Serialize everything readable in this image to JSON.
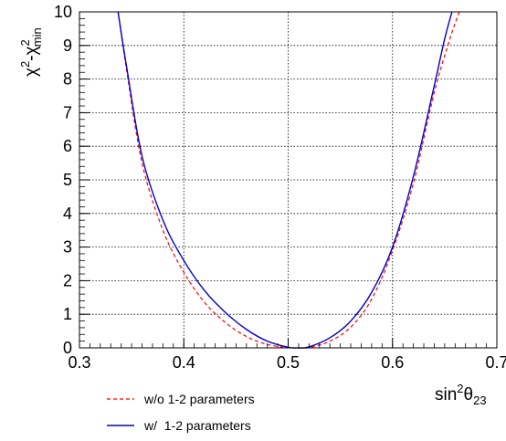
{
  "chart_data": {
    "type": "line",
    "xlabel": {
      "base": "sin",
      "sup": "2",
      "greek": "θ",
      "sub": "23"
    },
    "ylabel": {
      "chi": "χ",
      "sup1": "2",
      "dash": "-",
      "chi2": "χ",
      "sup2": "2",
      "sub": "min"
    },
    "xlim": [
      0.3,
      0.7
    ],
    "ylim": [
      0,
      10
    ],
    "x_ticks": [
      "0.3",
      "0.4",
      "0.5",
      "0.6",
      "0.7"
    ],
    "y_ticks": [
      "0",
      "1",
      "2",
      "3",
      "4",
      "5",
      "6",
      "7",
      "8",
      "9",
      "10"
    ],
    "grid": true,
    "legend_position": "bottom-left, below plot",
    "series": [
      {
        "name": "w/o 1-2 parameters",
        "color": "#ff0000",
        "style": "dashed",
        "x": [
          0.337,
          0.345,
          0.36,
          0.38,
          0.4,
          0.42,
          0.44,
          0.46,
          0.48,
          0.5,
          0.51,
          0.52,
          0.54,
          0.56,
          0.58,
          0.6,
          0.62,
          0.64,
          0.655,
          0.664
        ],
        "y": [
          10.0,
          8.3,
          5.5,
          3.5,
          2.25,
          1.35,
          0.75,
          0.34,
          0.1,
          0.01,
          0.0,
          0.01,
          0.2,
          0.62,
          1.45,
          2.9,
          4.9,
          7.6,
          9.2,
          10.0
        ]
      },
      {
        "name": "w/  1-2 parameters",
        "color": "#0000cc",
        "style": "solid",
        "x": [
          0.337,
          0.345,
          0.36,
          0.38,
          0.4,
          0.42,
          0.44,
          0.46,
          0.48,
          0.5,
          0.51,
          0.52,
          0.54,
          0.56,
          0.58,
          0.6,
          0.62,
          0.64,
          0.65,
          0.657
        ],
        "y": [
          10.0,
          8.4,
          5.7,
          3.8,
          2.6,
          1.7,
          1.05,
          0.55,
          0.2,
          0.02,
          0.0,
          0.03,
          0.3,
          0.8,
          1.65,
          3.0,
          5.1,
          7.8,
          9.2,
          10.0
        ]
      }
    ]
  }
}
